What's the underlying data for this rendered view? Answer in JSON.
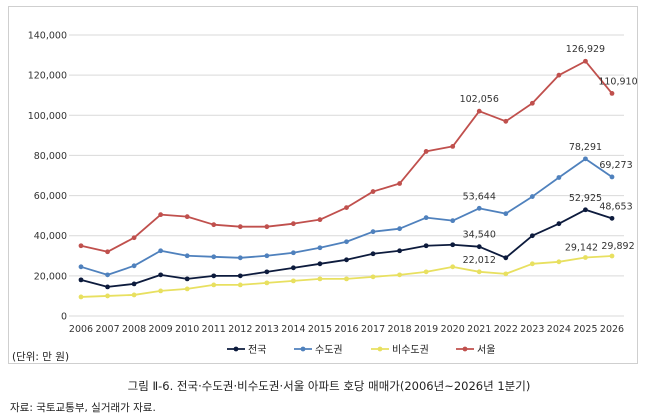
{
  "unit_label": "(단위: 만 원)",
  "caption": "그림 Ⅱ-6. 전국·수도권·비수도권·서울 아파트 호당 매매가(2006년~2026년 1분기)",
  "source": "자료: 국토교통부, 실거래가 자료.",
  "chart_data": {
    "type": "line",
    "categories": [
      "2006",
      "2007",
      "2008",
      "2009",
      "2010",
      "2011",
      "2012",
      "2013",
      "2014",
      "2015",
      "2016",
      "2017",
      "2018",
      "2019",
      "2020",
      "2021",
      "2022",
      "2023",
      "2024",
      "2025",
      "2026"
    ],
    "ylim": [
      0,
      140000
    ],
    "yticks": [
      0,
      20000,
      40000,
      60000,
      80000,
      100000,
      120000,
      140000
    ],
    "ytick_labels": [
      "0",
      "20,000",
      "40,000",
      "60,000",
      "80,000",
      "100,000",
      "120,000",
      "140,000"
    ],
    "grid": "horizontal",
    "legend_position": "bottom",
    "series": [
      {
        "name": "전국",
        "color": "#0d1b3d",
        "values": [
          18000,
          14500,
          16000,
          20500,
          18500,
          20000,
          20000,
          22000,
          24000,
          26000,
          28000,
          31000,
          32500,
          35000,
          35500,
          34540,
          29000,
          40000,
          46000,
          52925,
          48653
        ]
      },
      {
        "name": "수도권",
        "color": "#4f81bd",
        "values": [
          24500,
          20500,
          25000,
          32500,
          30000,
          29500,
          29000,
          30000,
          31500,
          34000,
          37000,
          42000,
          43500,
          49000,
          47500,
          53644,
          51000,
          59500,
          69000,
          78291,
          69273
        ]
      },
      {
        "name": "비수도권",
        "color": "#e8e060",
        "values": [
          9500,
          10000,
          10500,
          12500,
          13500,
          15500,
          15500,
          16500,
          17500,
          18500,
          18500,
          19500,
          20500,
          22000,
          24500,
          22012,
          21000,
          26000,
          27000,
          29142,
          29892
        ]
      },
      {
        "name": "서울",
        "color": "#c0504d",
        "values": [
          35000,
          32000,
          39000,
          50500,
          49500,
          45500,
          44500,
          44500,
          46000,
          48000,
          54000,
          62000,
          66000,
          82000,
          84500,
          102056,
          97000,
          106000,
          120000,
          126929,
          110910
        ]
      }
    ],
    "annotations": [
      {
        "series": 0,
        "index": 15,
        "text": "34,540"
      },
      {
        "series": 0,
        "index": 19,
        "text": "52,925"
      },
      {
        "series": 0,
        "index": 20,
        "text": "48,653"
      },
      {
        "series": 1,
        "index": 15,
        "text": "53,644"
      },
      {
        "series": 1,
        "index": 19,
        "text": "78,291"
      },
      {
        "series": 1,
        "index": 20,
        "text": "69,273"
      },
      {
        "series": 2,
        "index": 15,
        "text": "22,012"
      },
      {
        "series": 2,
        "index": 19,
        "text": "29,142"
      },
      {
        "series": 2,
        "index": 20,
        "text": "29,892"
      },
      {
        "series": 3,
        "index": 15,
        "text": "102,056"
      },
      {
        "series": 3,
        "index": 19,
        "text": "126,929"
      },
      {
        "series": 3,
        "index": 20,
        "text": "110,910"
      }
    ]
  }
}
